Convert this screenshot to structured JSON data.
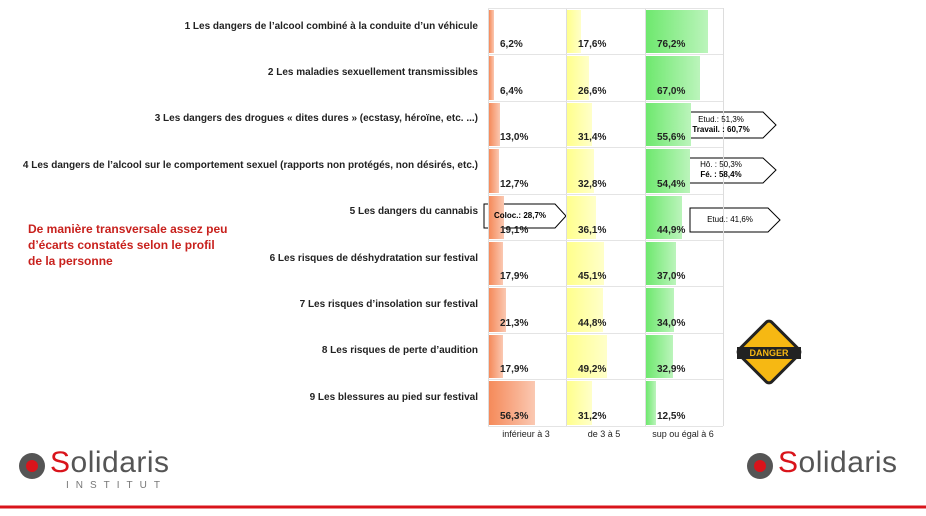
{
  "chart_data": {
    "type": "bar",
    "categories": [
      "1 Les dangers de l’alcool combiné à la conduite d’un véhicule",
      "2 Les maladies sexuellement transmissibles",
      "3 Les dangers des drogues « dites dures » (ecstasy, héroïne, etc. ...)",
      "4 Les dangers de l’alcool sur le comportement sexuel (rapports non protégés, non désirés, etc.)",
      "5 Les dangers du cannabis",
      "6 Les risques de déshydratation sur festival",
      "7  Les risques d’insolation sur festival",
      "8 Les risques de perte d’audition",
      "9 Les blessures au pied sur festival"
    ],
    "series": [
      {
        "name": "inférieur à 3",
        "color": "#f58a5a",
        "values": [
          6.2,
          6.4,
          13.0,
          12.7,
          19.1,
          17.9,
          21.3,
          17.9,
          56.3
        ],
        "value_labels": [
          "6,2%",
          "6,4%",
          "13,0%",
          "12,7%",
          "19,1%",
          "17,9%",
          "21,3%",
          "17,9%",
          "56,3%"
        ]
      },
      {
        "name": "de 3 à 5",
        "color": "#ffff8c",
        "values": [
          17.6,
          26.6,
          31.4,
          32.8,
          36.1,
          45.1,
          44.8,
          49.2,
          31.2
        ],
        "value_labels": [
          "17,6%",
          "26,6%",
          "31,4%",
          "32,8%",
          "36,1%",
          "45,1%",
          "44,8%",
          "49,2%",
          "31,2%"
        ]
      },
      {
        "name": "sup ou égal à 6",
        "color": "#6ee86e",
        "values": [
          76.2,
          67.0,
          55.6,
          54.4,
          44.9,
          37.0,
          34.0,
          32.9,
          12.5
        ],
        "value_labels": [
          "76,2%",
          "67,0%",
          "55,6%",
          "54,4%",
          "44,9%",
          "37,0%",
          "34,0%",
          "32,9%",
          "12,5%"
        ]
      }
    ]
  },
  "note": "De manière transversale assez peu d’écarts constatés selon le profil de la personne",
  "callouts": [
    {
      "lines": [
        "Etud.: 51,3%",
        "Travail. : 60,7%"
      ]
    },
    {
      "lines": [
        "Hô. : 50,3%",
        "Fé. : 58,4%"
      ]
    },
    {
      "lines": [
        "Coloc.: 28,7%"
      ]
    },
    {
      "lines": [
        "Etud.: 41,6%"
      ]
    }
  ],
  "danger_sign": "DANGER",
  "logos": [
    {
      "name": "Solidaris",
      "sub": "INSTITUT"
    },
    {
      "name": "Solidaris"
    }
  ]
}
